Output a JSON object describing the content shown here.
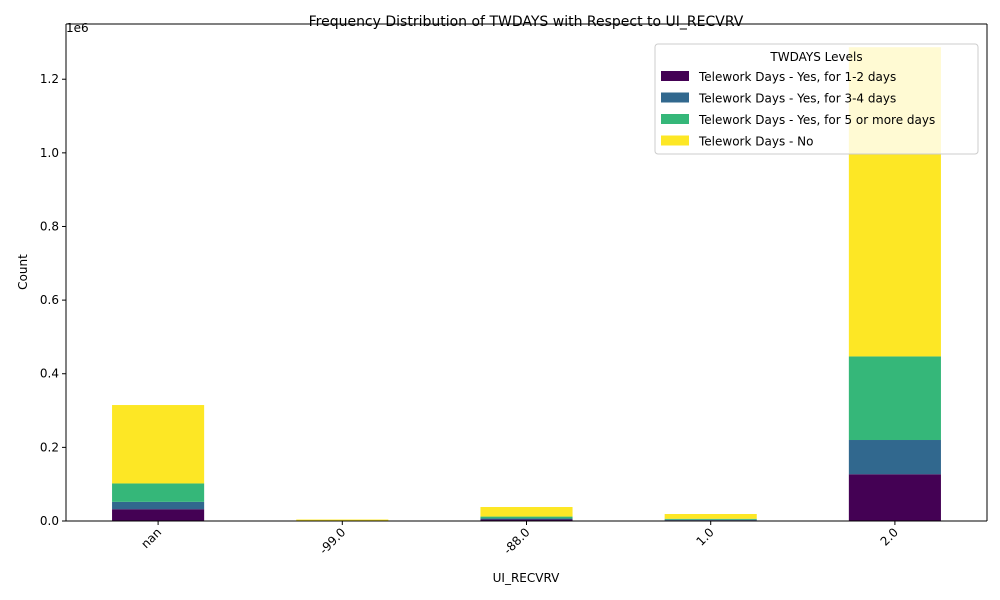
{
  "chart_data": {
    "type": "bar",
    "stacked": true,
    "title": "Frequency Distribution of TWDAYS with Respect to UI_RECVRV",
    "xlabel": "UI_RECVRV",
    "ylabel": "Count",
    "y_offset_label": "1e6",
    "categories": [
      "nan",
      "-99.0",
      "-88.0",
      "1.0",
      "2.0"
    ],
    "ylim": [
      0,
      1350000
    ],
    "yticks": [
      0,
      200000,
      400000,
      600000,
      800000,
      1000000,
      1200000
    ],
    "ytick_labels": [
      "0.0",
      "0.2",
      "0.4",
      "0.6",
      "0.8",
      "1.0",
      "1.2"
    ],
    "legend_title": "TWDAYS Levels",
    "legend_position": "top-right",
    "grid": false,
    "series": [
      {
        "name": "Telework Days - Yes, for 1-2 days",
        "color": "#440154",
        "values": [
          32000,
          500,
          4000,
          2000,
          127000
        ]
      },
      {
        "name": "Telework Days - Yes, for 3-4 days",
        "color": "#31688e",
        "values": [
          20000,
          300,
          3000,
          1500,
          93000
        ]
      },
      {
        "name": "Telework Days - Yes, for 5 or more days",
        "color": "#35b779",
        "values": [
          50000,
          500,
          5000,
          2500,
          227000
        ]
      },
      {
        "name": "Telework Days - No",
        "color": "#fde725",
        "values": [
          213000,
          2700,
          26000,
          13000,
          840000
        ]
      }
    ]
  }
}
